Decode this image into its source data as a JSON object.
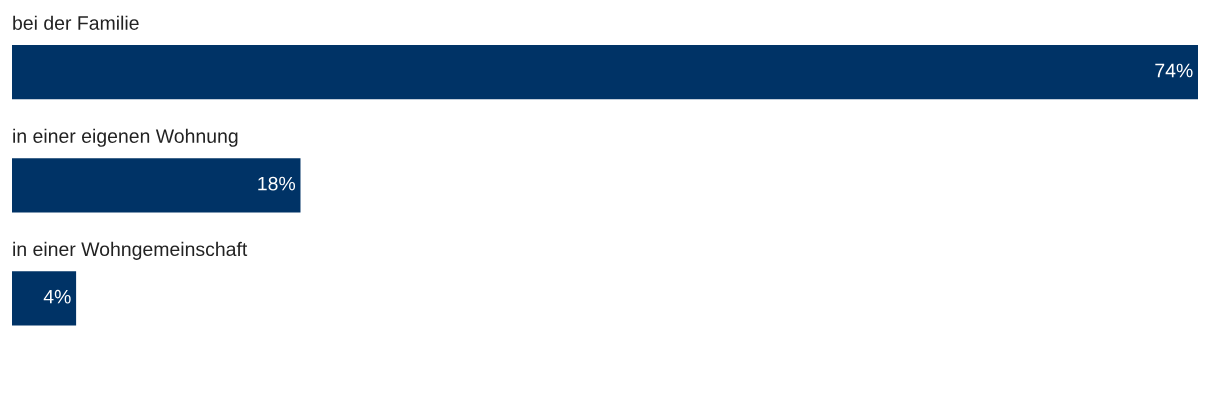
{
  "chart_data": {
    "type": "bar",
    "orientation": "horizontal",
    "categories": [
      "bei der Familie",
      "in einer eigenen Wohnung",
      "in einer Wohngemeinschaft"
    ],
    "values": [
      74,
      18,
      4
    ],
    "color": "#003366",
    "data_labels": true,
    "value_labels": [
      "74%",
      "18%",
      "4%"
    ]
  }
}
